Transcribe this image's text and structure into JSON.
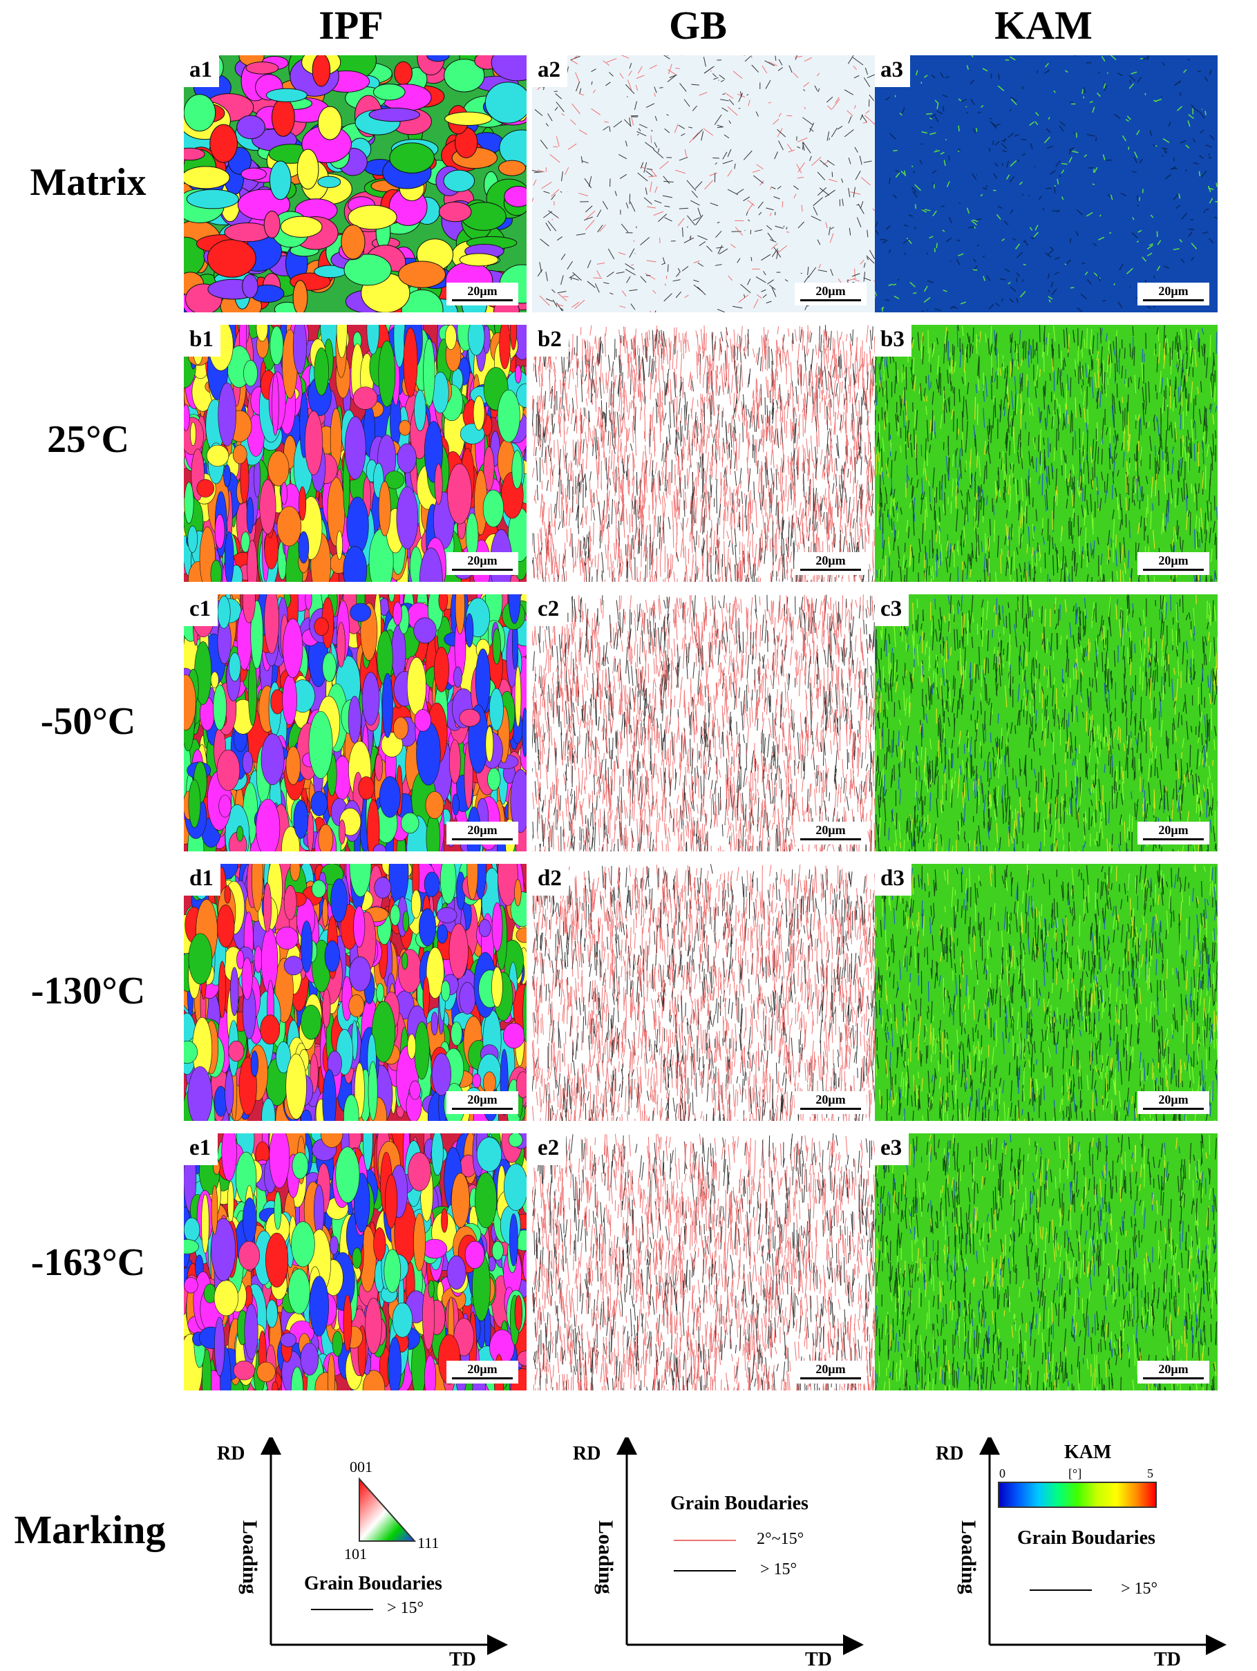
{
  "columns": [
    "IPF",
    "GB",
    "KAM"
  ],
  "rows": [
    {
      "label": "Matrix",
      "panels": [
        "a1",
        "a2",
        "a3"
      ]
    },
    {
      "label": "25°C",
      "panels": [
        "b1",
        "b2",
        "b3"
      ]
    },
    {
      "label": "-50°C",
      "panels": [
        "c1",
        "c2",
        "c3"
      ]
    },
    {
      "label": "-130°C",
      "panels": [
        "d1",
        "d2",
        "d3"
      ]
    },
    {
      "label": "-163°C",
      "panels": [
        "e1",
        "e2",
        "e3"
      ]
    }
  ],
  "scale_bar": "20μm",
  "marking": {
    "label": "Marking",
    "axes": {
      "rd": "RD",
      "td": "TD",
      "loading": "Loading"
    },
    "ipf": {
      "triangle": {
        "top": "001",
        "left": "101",
        "right": "111"
      },
      "gb_title": "Grain Boudaries",
      "gb_high": "> 15°"
    },
    "gb": {
      "title": "Grain Boudaries",
      "low": "2°~15°",
      "high": "> 15°",
      "low_color": "#f07070",
      "high_color": "#000000"
    },
    "kam": {
      "title": "KAM",
      "min": "0",
      "unit": "[°]",
      "max": "5",
      "gb_title": "Grain Boudaries",
      "gb_high": "> 15°"
    }
  }
}
